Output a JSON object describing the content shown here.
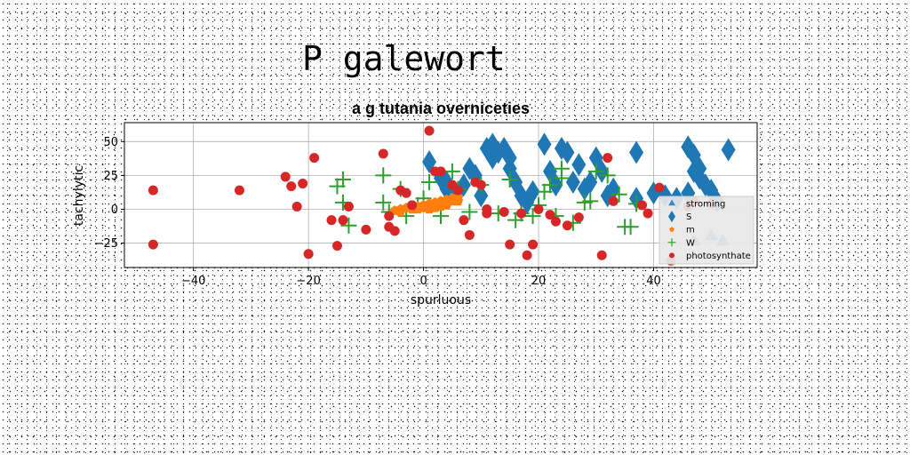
{
  "figure": {
    "suptitle": "P galewort"
  },
  "chart_data": {
    "type": "scatter",
    "title": "a g tutania overniceties",
    "xlabel": "spurluous",
    "ylabel": "tachylytic",
    "xlim": [
      -52,
      58
    ],
    "ylim": [
      -43,
      64
    ],
    "xticks": [
      -40,
      -20,
      0,
      20,
      40
    ],
    "yticks": [
      -25,
      0,
      25,
      50
    ],
    "grid": true,
    "legend_position": "lower-right",
    "series": [
      {
        "name": "stroming",
        "marker": "triangle",
        "color": "#1f77b4",
        "points": [
          [
            47,
            -24
          ],
          [
            52,
            -24
          ],
          [
            50,
            -20
          ]
        ]
      },
      {
        "name": "S",
        "marker": "diamond",
        "color": "#1f77b4",
        "points": [
          [
            1,
            35
          ],
          [
            3,
            23
          ],
          [
            4,
            20
          ],
          [
            4,
            15
          ],
          [
            6,
            12
          ],
          [
            7,
            18
          ],
          [
            8,
            30
          ],
          [
            9,
            25
          ],
          [
            10,
            10
          ],
          [
            11,
            45
          ],
          [
            12,
            48
          ],
          [
            12,
            38
          ],
          [
            13,
            42
          ],
          [
            14,
            45
          ],
          [
            15,
            38
          ],
          [
            15,
            30
          ],
          [
            16,
            20
          ],
          [
            17,
            10
          ],
          [
            18,
            5
          ],
          [
            19,
            13
          ],
          [
            21,
            48
          ],
          [
            22,
            28
          ],
          [
            23,
            18
          ],
          [
            24,
            45
          ],
          [
            25,
            42
          ],
          [
            26,
            20
          ],
          [
            27,
            33
          ],
          [
            28,
            15
          ],
          [
            29,
            20
          ],
          [
            30,
            38
          ],
          [
            31,
            28
          ],
          [
            32,
            10
          ],
          [
            33,
            15
          ],
          [
            37,
            42
          ],
          [
            37,
            8
          ],
          [
            40,
            12
          ],
          [
            42,
            10
          ],
          [
            44,
            8
          ],
          [
            46,
            46
          ],
          [
            47,
            40
          ],
          [
            48,
            30
          ],
          [
            48,
            23
          ],
          [
            49,
            18
          ],
          [
            50,
            14
          ],
          [
            51,
            6
          ],
          [
            53,
            44
          ],
          [
            46,
            12
          ],
          [
            47,
            28
          ]
        ]
      },
      {
        "name": "m",
        "marker": "pentagon",
        "color": "#ff7f0e",
        "points": [
          [
            -5,
            -1
          ],
          [
            -4,
            0
          ],
          [
            -3,
            1
          ],
          [
            -2,
            2
          ],
          [
            -1,
            2
          ],
          [
            0,
            3
          ],
          [
            1,
            4
          ],
          [
            1,
            2
          ],
          [
            2,
            5
          ],
          [
            2,
            3
          ],
          [
            3,
            6
          ],
          [
            3,
            4
          ],
          [
            4,
            7
          ],
          [
            4,
            5
          ],
          [
            5,
            8
          ],
          [
            5,
            6
          ],
          [
            6,
            9
          ],
          [
            -4,
            -2
          ],
          [
            -2,
            0
          ],
          [
            0,
            1
          ],
          [
            2,
            1
          ],
          [
            4,
            3
          ],
          [
            6,
            6
          ],
          [
            3,
            2
          ],
          [
            -1,
            0
          ],
          [
            1,
            0
          ]
        ]
      },
      {
        "name": "W",
        "marker": "plus",
        "color": "#2ca02c",
        "points": [
          [
            -15,
            17
          ],
          [
            -14,
            22
          ],
          [
            -14,
            5
          ],
          [
            -13,
            -12
          ],
          [
            -7,
            25
          ],
          [
            -7,
            5
          ],
          [
            -6,
            -2
          ],
          [
            -4,
            15
          ],
          [
            -3,
            -5
          ],
          [
            -1,
            3
          ],
          [
            0,
            8
          ],
          [
            1,
            20
          ],
          [
            3,
            -5
          ],
          [
            5,
            28
          ],
          [
            6,
            15
          ],
          [
            8,
            -2
          ],
          [
            10,
            18
          ],
          [
            13,
            -3
          ],
          [
            15,
            22
          ],
          [
            16,
            -8
          ],
          [
            17,
            -3
          ],
          [
            19,
            -5
          ],
          [
            20,
            3
          ],
          [
            21,
            13
          ],
          [
            22,
            18
          ],
          [
            23,
            -5
          ],
          [
            24,
            30
          ],
          [
            24,
            23
          ],
          [
            26,
            -10
          ],
          [
            28,
            5
          ],
          [
            29,
            6
          ],
          [
            30,
            28
          ],
          [
            32,
            25
          ],
          [
            34,
            11
          ],
          [
            35,
            -13
          ],
          [
            36,
            -13
          ],
          [
            37,
            4
          ]
        ]
      },
      {
        "name": "photosynthate",
        "marker": "circle",
        "color": "#d62728",
        "points": [
          [
            -47,
            14
          ],
          [
            -47,
            -26
          ],
          [
            -32,
            14
          ],
          [
            -24,
            24
          ],
          [
            -23,
            17
          ],
          [
            -22,
            2
          ],
          [
            -21,
            19
          ],
          [
            -20,
            -33
          ],
          [
            -19,
            38
          ],
          [
            -16,
            -8
          ],
          [
            -15,
            -27
          ],
          [
            -14,
            -8
          ],
          [
            -13,
            2
          ],
          [
            -10,
            -15
          ],
          [
            -7,
            41
          ],
          [
            -6,
            -5
          ],
          [
            -6,
            -13
          ],
          [
            -5,
            -16
          ],
          [
            -4,
            14
          ],
          [
            -3,
            12
          ],
          [
            -2,
            3
          ],
          [
            1,
            58
          ],
          [
            2,
            28
          ],
          [
            3,
            28
          ],
          [
            5,
            18
          ],
          [
            6,
            14
          ],
          [
            7,
            -8
          ],
          [
            8,
            -19
          ],
          [
            9,
            20
          ],
          [
            10,
            18
          ],
          [
            11,
            0
          ],
          [
            14,
            -2
          ],
          [
            15,
            -26
          ],
          [
            17,
            -3
          ],
          [
            18,
            -34
          ],
          [
            19,
            -26
          ],
          [
            22,
            -4
          ],
          [
            23,
            -9
          ],
          [
            25,
            -12
          ],
          [
            27,
            -6
          ],
          [
            31,
            -34
          ],
          [
            32,
            38
          ],
          [
            33,
            6
          ],
          [
            38,
            3
          ],
          [
            39,
            -3
          ],
          [
            41,
            16
          ],
          [
            43,
            -38
          ],
          [
            46,
            2
          ],
          [
            47,
            6
          ],
          [
            50,
            4
          ],
          [
            20,
            0
          ],
          [
            11,
            -3
          ]
        ]
      }
    ]
  }
}
